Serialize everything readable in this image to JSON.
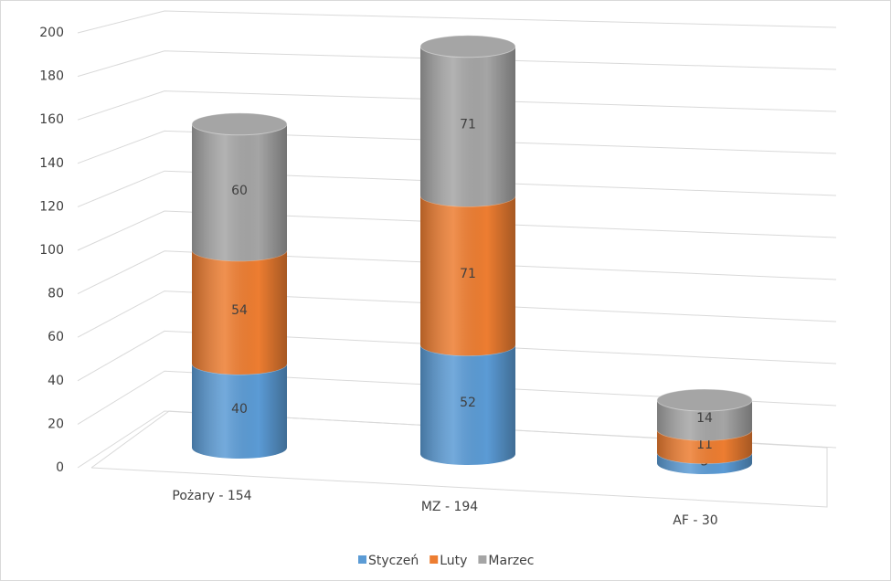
{
  "chart_data": {
    "type": "cylinder-stacked",
    "categories": [
      "Pożary - 154",
      "MZ - 194",
      "AF - 30"
    ],
    "series": [
      {
        "name": "Styczeń",
        "color": "#5b9bd5",
        "values": [
          40,
          52,
          5
        ]
      },
      {
        "name": "Luty",
        "color": "#ed7d31",
        "values": [
          54,
          71,
          11
        ]
      },
      {
        "name": "Marzec",
        "color": "#a5a5a5",
        "values": [
          60,
          71,
          14
        ]
      }
    ],
    "ylim": [
      0,
      200
    ],
    "yticks": [
      0,
      20,
      40,
      60,
      80,
      100,
      120,
      140,
      160,
      180,
      200
    ],
    "grid": true,
    "legend": "bottom"
  }
}
